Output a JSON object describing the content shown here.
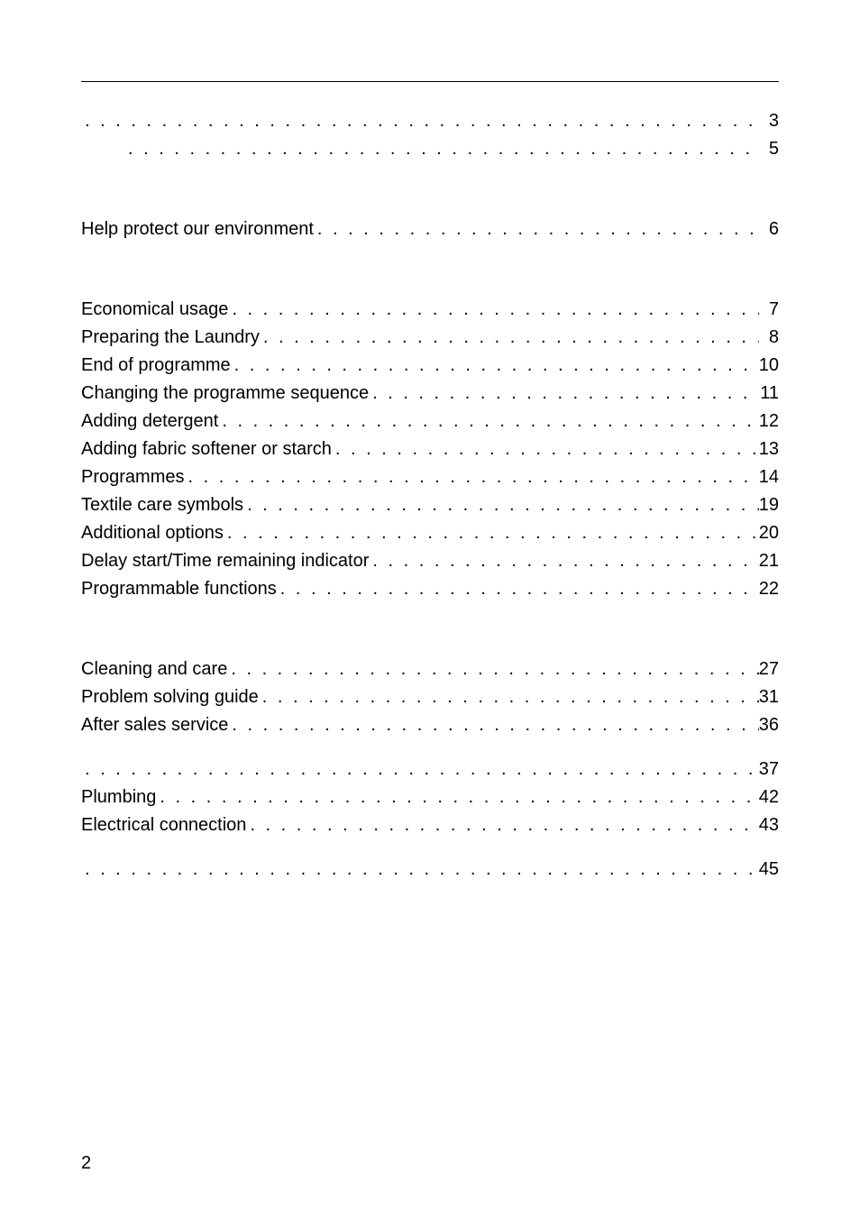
{
  "page_number": "2",
  "rows": [
    {
      "label": "",
      "page": "3",
      "indent": false,
      "gap_before": null
    },
    {
      "label": "",
      "page": "5",
      "indent": true,
      "gap_before": null
    },
    {
      "label": "Help protect our environment",
      "page": "6",
      "indent": false,
      "gap_before": "lg"
    },
    {
      "label": "Economical usage",
      "page": "7",
      "indent": false,
      "gap_before": "lg"
    },
    {
      "label": "Preparing the Laundry",
      "page": "8",
      "indent": false,
      "gap_before": null
    },
    {
      "label": "End of programme",
      "page": "10",
      "indent": false,
      "gap_before": null
    },
    {
      "label": "Changing the programme sequence",
      "page": "11",
      "indent": false,
      "gap_before": null
    },
    {
      "label": "Adding detergent",
      "page": "12",
      "indent": false,
      "gap_before": null
    },
    {
      "label": "Adding fabric softener or starch",
      "page": "13",
      "indent": false,
      "gap_before": null
    },
    {
      "label": "Programmes",
      "page": "14",
      "indent": false,
      "gap_before": null
    },
    {
      "label": "Textile care symbols",
      "page": "19",
      "indent": false,
      "gap_before": null
    },
    {
      "label": "Additional options",
      "page": "20",
      "indent": false,
      "gap_before": null
    },
    {
      "label": "Delay start/Time remaining indicator",
      "page": "21",
      "indent": false,
      "gap_before": null
    },
    {
      "label": "Programmable functions",
      "page": "22",
      "indent": false,
      "gap_before": null
    },
    {
      "label": "Cleaning and care",
      "page": "27",
      "indent": false,
      "gap_before": "lg"
    },
    {
      "label": "Problem solving guide",
      "page": "31",
      "indent": false,
      "gap_before": null
    },
    {
      "label": "After sales service",
      "page": "36",
      "indent": false,
      "gap_before": null
    },
    {
      "label": "",
      "page": "37",
      "indent": false,
      "gap_before": "sm"
    },
    {
      "label": "Plumbing",
      "page": "42",
      "indent": false,
      "gap_before": null
    },
    {
      "label": "Electrical connection",
      "page": "43",
      "indent": false,
      "gap_before": null
    },
    {
      "label": "",
      "page": "45",
      "indent": false,
      "gap_before": "sm"
    }
  ],
  "style": {
    "font_size_pt": 15,
    "text_color": "#000000",
    "background_color": "#ffffff",
    "rule_color": "#000000"
  }
}
